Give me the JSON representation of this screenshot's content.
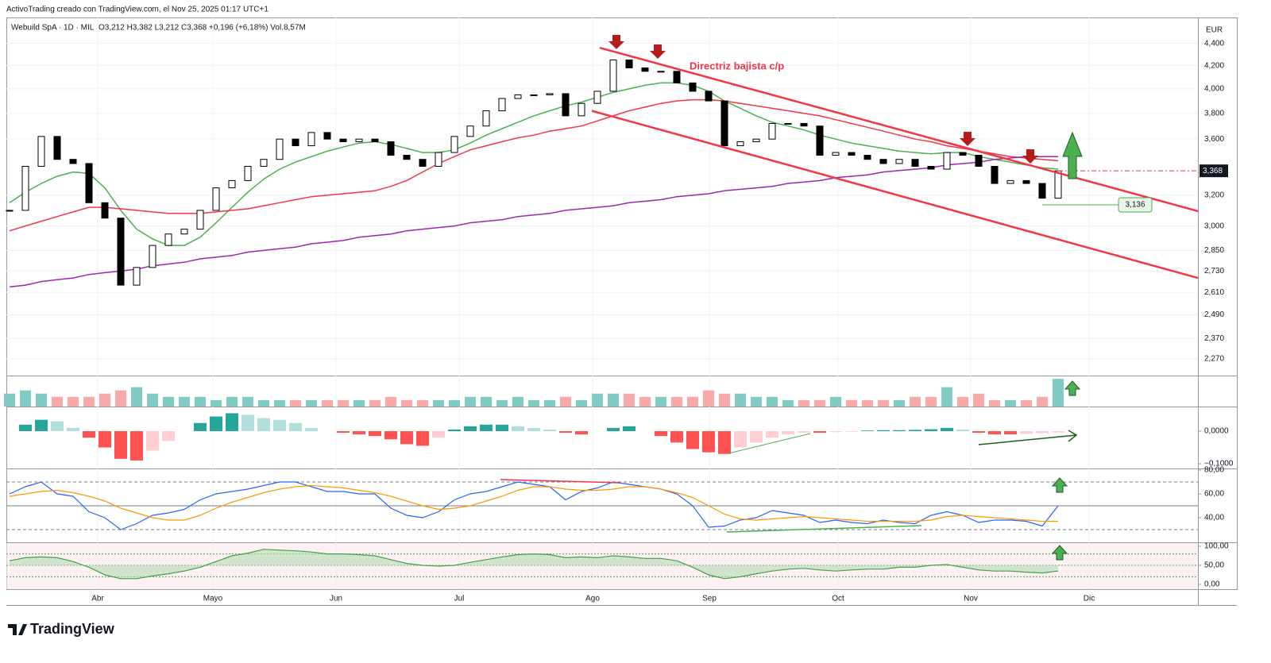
{
  "header": {
    "attribution": "ActivoTrading creado con TradingView.com, el Nov 25, 2025 01:17 UTC+1",
    "symbol": "Webuild SpA · 1D · MIL",
    "ohlc": "O3,212 H3,382 L3,212 C3,368 +0,196 (+6,18%) Vol.8,57M",
    "currency": "EUR",
    "brand": "TradingView"
  },
  "chart_data": [
    {
      "type": "candlestick",
      "log_scale": true,
      "grid": true,
      "up_color": "#ffffff",
      "down_color": "#000000",
      "values": [
        3.1,
        3.4,
        3.62,
        3.45,
        3.42,
        3.15,
        3.05,
        2.65,
        2.75,
        2.88,
        2.95,
        2.98,
        3.1,
        3.25,
        3.3,
        3.4,
        3.45,
        3.6,
        3.55,
        3.65,
        3.6,
        3.58,
        3.6,
        3.58,
        3.48,
        3.45,
        3.4,
        3.5,
        3.62,
        3.7,
        3.82,
        3.92,
        3.95,
        3.95,
        3.96,
        3.78,
        3.88,
        3.98,
        4.25,
        4.18,
        4.15,
        4.15,
        4.05,
        3.98,
        3.9,
        3.55,
        3.58,
        3.6,
        3.72,
        3.72,
        3.7,
        3.48,
        3.5,
        3.48,
        3.45,
        3.42,
        3.45,
        3.4,
        3.38,
        3.5,
        3.48,
        3.4,
        3.28,
        3.3,
        3.28,
        3.18,
        3.368
      ],
      "series": [
        {
          "color": "#4caf50",
          "values": [
            3.15,
            3.22,
            3.28,
            3.33,
            3.36,
            3.35,
            3.25,
            3.1,
            2.98,
            2.92,
            2.88,
            2.88,
            2.93,
            3.02,
            3.12,
            3.22,
            3.31,
            3.38,
            3.43,
            3.47,
            3.51,
            3.54,
            3.57,
            3.58,
            3.56,
            3.53,
            3.5,
            3.5,
            3.52,
            3.57,
            3.63,
            3.68,
            3.73,
            3.78,
            3.82,
            3.86,
            3.89,
            3.93,
            3.97,
            4.0,
            4.03,
            4.05,
            4.05,
            4.03,
            3.98,
            3.9,
            3.84,
            3.78,
            3.73,
            3.7,
            3.67,
            3.63,
            3.6,
            3.57,
            3.55,
            3.53,
            3.51,
            3.5,
            3.49,
            3.5,
            3.5,
            3.47,
            3.45,
            3.43,
            3.41,
            3.39,
            3.38
          ]
        },
        {
          "color": "#f23645",
          "values": [
            2.97,
            3.0,
            3.03,
            3.06,
            3.09,
            3.12,
            3.12,
            3.11,
            3.1,
            3.09,
            3.08,
            3.08,
            3.08,
            3.09,
            3.1,
            3.11,
            3.13,
            3.15,
            3.17,
            3.19,
            3.2,
            3.21,
            3.22,
            3.23,
            3.26,
            3.3,
            3.36,
            3.42,
            3.47,
            3.52,
            3.55,
            3.58,
            3.61,
            3.63,
            3.66,
            3.68,
            3.7,
            3.74,
            3.78,
            3.82,
            3.85,
            3.88,
            3.9,
            3.91,
            3.91,
            3.9,
            3.88,
            3.86,
            3.84,
            3.82,
            3.8,
            3.78,
            3.75,
            3.72,
            3.69,
            3.66,
            3.63,
            3.6,
            3.58,
            3.55,
            3.53,
            3.51,
            3.49,
            3.47,
            3.46,
            3.45,
            3.44
          ]
        },
        {
          "color": "#9c27b0",
          "values": [
            2.64,
            2.65,
            2.67,
            2.68,
            2.69,
            2.71,
            2.72,
            2.73,
            2.74,
            2.76,
            2.77,
            2.78,
            2.8,
            2.81,
            2.82,
            2.84,
            2.85,
            2.86,
            2.87,
            2.89,
            2.9,
            2.91,
            2.93,
            2.94,
            2.95,
            2.97,
            2.98,
            2.99,
            3.0,
            3.02,
            3.03,
            3.04,
            3.06,
            3.07,
            3.08,
            3.1,
            3.11,
            3.12,
            3.13,
            3.15,
            3.16,
            3.17,
            3.19,
            3.2,
            3.21,
            3.23,
            3.24,
            3.25,
            3.26,
            3.28,
            3.29,
            3.3,
            3.32,
            3.33,
            3.34,
            3.36,
            3.37,
            3.38,
            3.39,
            3.41,
            3.42,
            3.43,
            3.45,
            3.46,
            3.47,
            3.47,
            3.47
          ]
        }
      ],
      "trendlines": [
        [
          [
            37.15,
            4.36
          ],
          [
            74.8,
            3.095
          ]
        ],
        [
          [
            36.65,
            3.82
          ],
          [
            74.8,
            2.69
          ]
        ]
      ],
      "trend_color": "#f23645",
      "annotation": "Directriz bajista c/p",
      "last_price": {
        "value": 3.368,
        "label": "3,368"
      },
      "support": {
        "value": 3.136,
        "label": "3,136"
      },
      "xlim": [
        -0.2,
        74.8
      ],
      "ylim": [
        2.203,
        4.6
      ],
      "yticks": [
        {
          "value": 4.4,
          "label": "4,400"
        },
        {
          "value": 4.2,
          "label": "4,200"
        },
        {
          "value": 4.0,
          "label": "4,000"
        },
        {
          "value": 3.8,
          "label": "3,800"
        },
        {
          "value": 3.6,
          "label": "3,600"
        },
        {
          "value": 3.2,
          "label": "3,200"
        },
        {
          "value": 3.0,
          "label": "3,000"
        },
        {
          "value": 2.85,
          "label": "2,850"
        },
        {
          "value": 2.73,
          "label": "2,730"
        },
        {
          "value": 2.61,
          "label": "2,610"
        },
        {
          "value": 2.49,
          "label": "2,490"
        },
        {
          "value": 2.37,
          "label": "2,370"
        },
        {
          "value": 2.27,
          "label": "2,270"
        }
      ],
      "xticks": [
        {
          "value": 5.55,
          "label": "Abr"
        },
        {
          "value": 12.8,
          "label": "Mayo"
        },
        {
          "value": 20.55,
          "label": "Jun"
        },
        {
          "value": 28.3,
          "label": "Jul"
        },
        {
          "value": 36.7,
          "label": "Ago"
        },
        {
          "value": 44.05,
          "label": "Sep"
        },
        {
          "value": 52.15,
          "label": "Oct"
        },
        {
          "value": 60.5,
          "label": "Nov"
        },
        {
          "value": 67.95,
          "label": "Dic"
        }
      ]
    },
    {
      "type": "volume",
      "up_color": "#80cbc4",
      "down_color": "#f7a9a7",
      "ylim": [
        0,
        9.1
      ],
      "values": [
        4,
        5,
        4,
        3,
        3,
        3,
        4,
        5,
        6,
        4,
        3,
        3,
        3,
        2,
        3,
        3,
        2,
        2,
        2,
        2,
        2,
        2,
        2,
        2,
        3,
        2,
        2,
        2,
        2,
        3,
        3,
        2,
        3,
        2,
        2,
        3,
        2,
        4,
        4,
        4,
        3,
        3,
        3,
        3,
        5,
        4,
        4,
        3,
        3,
        2,
        2,
        2,
        3,
        2,
        2,
        2,
        2,
        3,
        3,
        6,
        3,
        4,
        2,
        2,
        2,
        3,
        8.57
      ]
    },
    {
      "type": "macd",
      "colors": [
        "#26a69a",
        "#b2dfdb",
        "#ff5252",
        "#ffcdd2"
      ],
      "ylim": [
        -0.1146,
        0.0756
      ],
      "yticks": [
        {
          "value": 0,
          "label": "0,0000"
        },
        {
          "value": -0.1,
          "label": "−0,1000"
        }
      ],
      "values": [
        0.0,
        0.02,
        0.035,
        0.03,
        0.01,
        -0.02,
        -0.05,
        -0.085,
        -0.09,
        -0.06,
        -0.03,
        0.0,
        0.025,
        0.045,
        0.055,
        0.05,
        0.04,
        0.035,
        0.025,
        0.01,
        0.0,
        -0.005,
        -0.01,
        -0.015,
        -0.025,
        -0.04,
        -0.045,
        -0.02,
        0.005,
        0.015,
        0.02,
        0.02,
        0.015,
        0.01,
        0.005,
        -0.005,
        -0.01,
        0.0,
        0.01,
        0.015,
        0.0,
        -0.015,
        -0.035,
        -0.055,
        -0.065,
        -0.07,
        -0.05,
        -0.035,
        -0.02,
        -0.01,
        -0.005,
        -0.005,
        -0.003,
        -0.002,
        0.002,
        0.003,
        0.003,
        0.004,
        0.006,
        0.01,
        0.005,
        -0.005,
        -0.01,
        -0.01,
        -0.008,
        -0.006,
        -0.004
      ]
    },
    {
      "type": "line",
      "ylim": [
        20,
        80
      ],
      "levels": [
        70,
        50,
        30
      ],
      "yticks": [
        {
          "value": 80,
          "label": "80,00"
        },
        {
          "value": 60,
          "label": "60,00"
        },
        {
          "value": 40,
          "label": "40,00"
        }
      ],
      "series": [
        {
          "color": "#2962ff",
          "values": [
            60,
            66,
            70,
            60,
            58,
            45,
            40,
            30,
            35,
            42,
            44,
            47,
            55,
            60,
            62,
            64,
            67,
            70,
            70,
            66,
            62,
            62,
            60,
            60,
            48,
            42,
            40,
            45,
            55,
            60,
            62,
            66,
            70,
            68,
            66,
            55,
            62,
            65,
            70,
            68,
            66,
            64,
            60,
            50,
            32,
            33,
            38,
            40,
            46,
            44,
            42,
            36,
            38,
            36,
            35,
            38,
            36,
            35,
            42,
            45,
            42,
            36,
            38,
            38,
            37,
            33,
            50
          ]
        },
        {
          "color": "#ff9800",
          "values": [
            58,
            60,
            62,
            63,
            61,
            58,
            54,
            48,
            44,
            40,
            38,
            38,
            42,
            48,
            53,
            57,
            61,
            64,
            66,
            67,
            66,
            65,
            63,
            61,
            58,
            54,
            50,
            47,
            48,
            50,
            54,
            58,
            63,
            66,
            66,
            64,
            63,
            63,
            64,
            66,
            66,
            64,
            61,
            57,
            50,
            43,
            39,
            38,
            39,
            40,
            41,
            40,
            39,
            38,
            37,
            37,
            37,
            37,
            38,
            41,
            42,
            41,
            40,
            39,
            38,
            37,
            37
          ]
        }
      ]
    },
    {
      "type": "area",
      "ylim": [
        -12.5,
        108.3
      ],
      "baseline": 50,
      "levels": [
        80,
        50,
        20
      ],
      "color": "#43a047",
      "yticks": [
        {
          "value": 100,
          "label": "100,00"
        },
        {
          "value": 50,
          "label": "50,00"
        },
        {
          "value": 0,
          "label": "0,00"
        }
      ],
      "values": [
        62,
        70,
        72,
        70,
        60,
        45,
        25,
        15,
        15,
        22,
        28,
        35,
        45,
        60,
        75,
        82,
        92,
        90,
        88,
        85,
        80,
        80,
        78,
        75,
        65,
        55,
        50,
        48,
        50,
        58,
        65,
        72,
        78,
        80,
        78,
        70,
        72,
        70,
        75,
        72,
        68,
        68,
        62,
        45,
        25,
        15,
        20,
        28,
        35,
        40,
        42,
        38,
        35,
        38,
        40,
        40,
        45,
        45,
        50,
        52,
        45,
        38,
        35,
        35,
        32,
        30,
        35
      ]
    }
  ]
}
